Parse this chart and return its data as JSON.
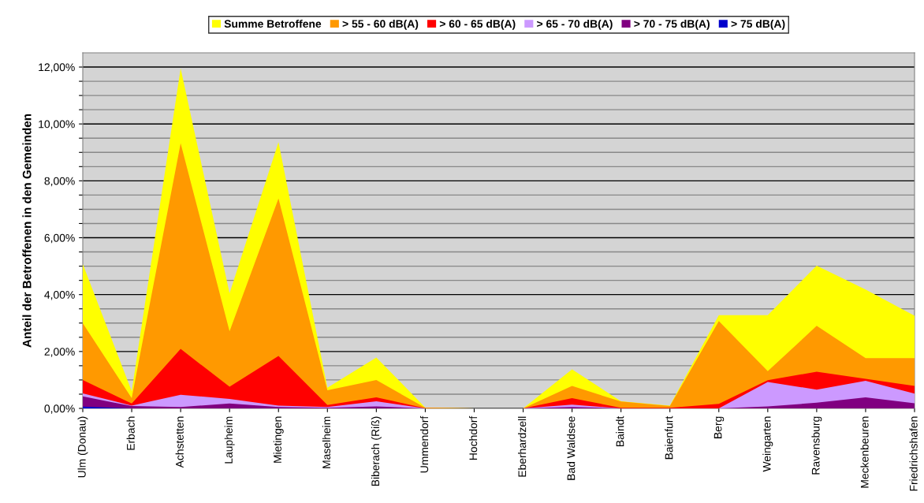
{
  "chart_data": {
    "type": "area",
    "ylabel": "Anteil der Betroffenen in den Gemeinden",
    "categories": [
      "Ulm (Donau)",
      "Erbach",
      "Achstetten",
      "Laupheim",
      "Mietingen",
      "Maselheim",
      "Biberach (Riß)",
      "Ummendorf",
      "Hochdorf",
      "Eberhardzell",
      "Bad Waldsee",
      "Baindt",
      "Baienfurt",
      "Berg",
      "Weingarten",
      "Ravensburg",
      "Meckenbeuren",
      "Friedrichshafen"
    ],
    "series": [
      {
        "name": "Summe Betroffene",
        "color": "#ffff00",
        "values": [
          5.07,
          0.6,
          11.95,
          4.05,
          9.36,
          0.73,
          1.79,
          0.03,
          0,
          0,
          1.37,
          0.25,
          0.1,
          3.28,
          3.28,
          5.02,
          4.18,
          3.26
        ]
      },
      {
        "name": "> 55 - 60 dB(A)",
        "color": "#ff9900",
        "values": [
          2.99,
          0.36,
          9.32,
          2.71,
          7.38,
          0.64,
          1.0,
          0.02,
          0,
          0,
          0.79,
          0.24,
          0.08,
          3.07,
          1.31,
          2.9,
          1.77,
          1.77
        ]
      },
      {
        "name": "> 60 - 65 dB(A)",
        "color": "#ff0000",
        "values": [
          1.0,
          0.17,
          2.09,
          0.76,
          1.84,
          0.12,
          0.39,
          0.01,
          0,
          0,
          0.36,
          0.02,
          0.02,
          0.16,
          0.99,
          1.29,
          1.04,
          0.79
        ]
      },
      {
        "name": "> 65 - 70 dB(A)",
        "color": "#cc99ff",
        "values": [
          0.53,
          0.1,
          0.48,
          0.33,
          0.1,
          0.05,
          0.25,
          0,
          0,
          0,
          0.13,
          0,
          0,
          0,
          0.93,
          0.66,
          0.97,
          0.52
        ]
      },
      {
        "name": "> 70 - 75 dB(A)",
        "color": "#800080",
        "values": [
          0.42,
          0.08,
          0.05,
          0.17,
          0.05,
          0.02,
          0.07,
          0,
          0,
          0,
          0.05,
          0,
          0,
          0,
          0.07,
          0.2,
          0.39,
          0.18
        ]
      },
      {
        "name": "> 75 dB(A)",
        "color": "#0000cc",
        "values": [
          0.06,
          0,
          0,
          0,
          0,
          0,
          0,
          0,
          0,
          0,
          0,
          0,
          0,
          0,
          0,
          0,
          0,
          0
        ]
      }
    ],
    "ylim": [
      0,
      12.5
    ],
    "yticks": [
      {
        "value": 0,
        "label": "0,00%"
      },
      {
        "value": 0.5,
        "label": null
      },
      {
        "value": 1,
        "label": null
      },
      {
        "value": 1.5,
        "label": null
      },
      {
        "value": 2,
        "label": "2,00%"
      },
      {
        "value": 2.5,
        "label": null
      },
      {
        "value": 3,
        "label": null
      },
      {
        "value": 3.5,
        "label": null
      },
      {
        "value": 4,
        "label": "4,00%"
      },
      {
        "value": 4.5,
        "label": null
      },
      {
        "value": 5,
        "label": null
      },
      {
        "value": 5.5,
        "label": null
      },
      {
        "value": 6,
        "label": "6,00%"
      },
      {
        "value": 6.5,
        "label": null
      },
      {
        "value": 7,
        "label": null
      },
      {
        "value": 7.5,
        "label": null
      },
      {
        "value": 8,
        "label": "8,00%"
      },
      {
        "value": 8.5,
        "label": null
      },
      {
        "value": 9,
        "label": null
      },
      {
        "value": 9.5,
        "label": null
      },
      {
        "value": 10,
        "label": "10,00%"
      },
      {
        "value": 10.5,
        "label": null
      },
      {
        "value": 11,
        "label": null
      },
      {
        "value": 11.5,
        "label": null
      },
      {
        "value": 12,
        "label": "12,00%"
      }
    ],
    "grid": "y",
    "legend": "top"
  }
}
